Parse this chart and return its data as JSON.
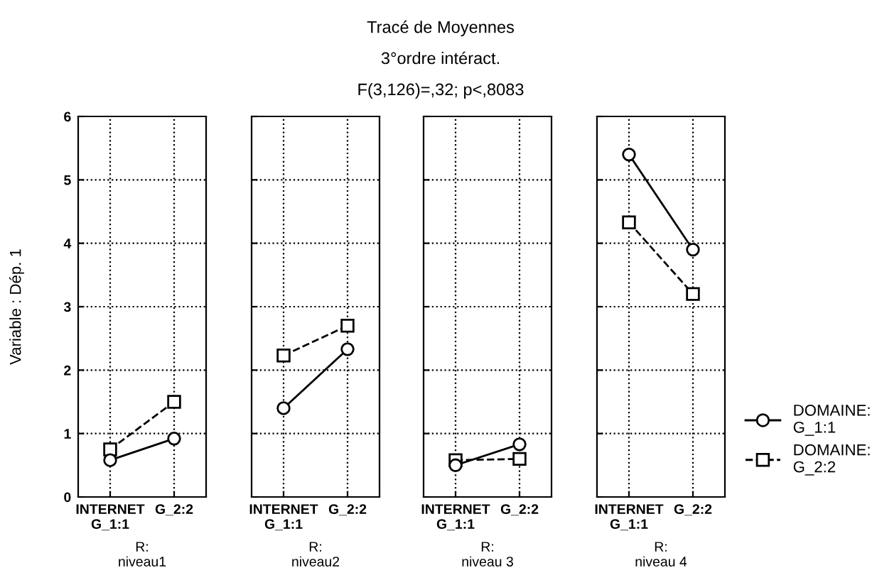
{
  "chart_data": [
    {
      "type": "other",
      "title": "Tracé de Moyennes",
      "subtitle": "3°ordre intéract.",
      "annotations": [
        "F(3,126)=,32; p<,8083"
      ]
    },
    {
      "type": "line",
      "ylabel": "Variable : Dép. 1",
      "xlabel": "R:\nniveau1",
      "categories": [
        "INTERNET\nG_1:1",
        "G_2:2"
      ],
      "ylim": [
        0,
        6
      ],
      "yticks": [
        0,
        1,
        2,
        3,
        4,
        5,
        6
      ],
      "grid": true,
      "series": [
        {
          "color": "#000000",
          "marker": "circle",
          "line_style": "solid",
          "values": [
            0.58,
            0.92
          ]
        },
        {
          "color": "#000000",
          "marker": "square",
          "line_style": "dashed",
          "values": [
            0.75,
            1.5
          ]
        }
      ]
    },
    {
      "type": "line",
      "xlabel": "R:\nniveau2",
      "categories": [
        "INTERNET\nG_1:1",
        "G_2:2"
      ],
      "ylim": [
        0,
        6
      ],
      "yticks": [
        0,
        1,
        2,
        3,
        4,
        5,
        6
      ],
      "tick_labels": "x",
      "grid": true,
      "series": [
        {
          "color": "#000000",
          "marker": "circle",
          "line_style": "solid",
          "values": [
            1.4,
            2.33
          ]
        },
        {
          "color": "#000000",
          "marker": "square",
          "line_style": "dashed",
          "values": [
            2.23,
            2.7
          ]
        }
      ]
    },
    {
      "type": "line",
      "xlabel": "R:\nniveau 3",
      "categories": [
        "INTERNET\nG_1:1",
        "G_2:2"
      ],
      "ylim": [
        0,
        6
      ],
      "yticks": [
        0,
        1,
        2,
        3,
        4,
        5,
        6
      ],
      "tick_labels": "x",
      "grid": true,
      "series": [
        {
          "color": "#000000",
          "marker": "circle",
          "line_style": "solid",
          "values": [
            0.5,
            0.83
          ]
        },
        {
          "color": "#000000",
          "marker": "square",
          "line_style": "dashed",
          "values": [
            0.58,
            0.6
          ]
        }
      ]
    },
    {
      "type": "line",
      "xlabel": "R:\nniveau 4",
      "categories": [
        "INTERNET\nG_1:1",
        "G_2:2"
      ],
      "ylim": [
        0,
        6
      ],
      "yticks": [
        0,
        1,
        2,
        3,
        4,
        5,
        6
      ],
      "tick_labels": "x",
      "grid": true,
      "legend": "right",
      "series": [
        {
          "name": "DOMAINE:\nG_1:1",
          "color": "#000000",
          "marker": "circle",
          "line_style": "solid",
          "values": [
            5.4,
            3.9
          ]
        },
        {
          "name": "DOMAINE:\nG_2:2",
          "color": "#000000",
          "marker": "square",
          "line_style": "dashed",
          "values": [
            4.33,
            3.2
          ]
        }
      ]
    }
  ]
}
